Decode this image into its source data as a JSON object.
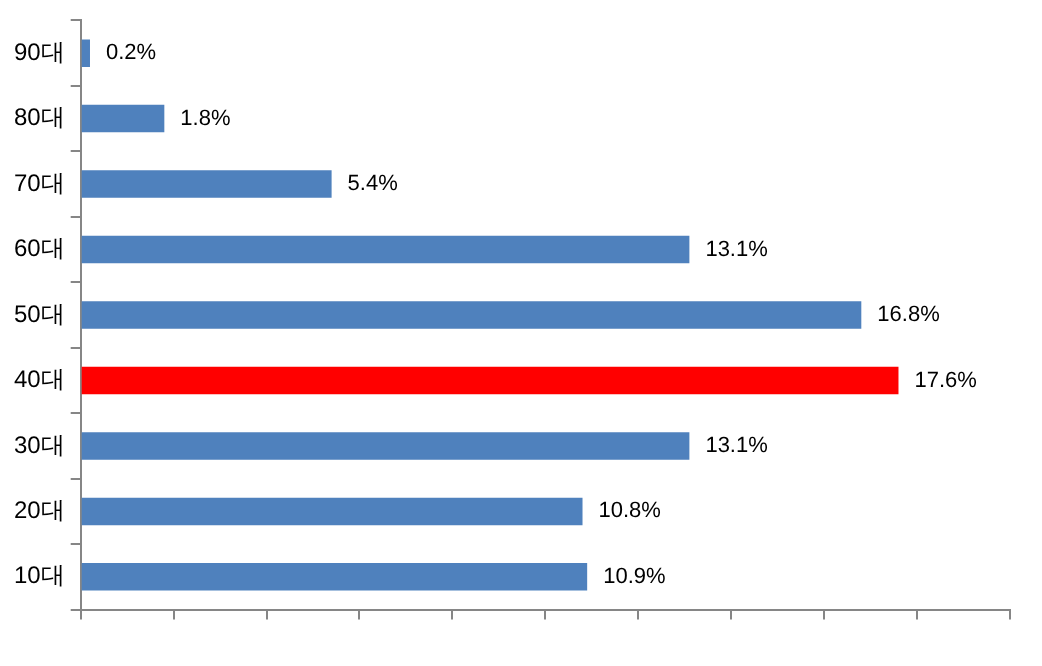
{
  "chart_data": {
    "type": "bar",
    "orientation": "horizontal",
    "categories": [
      "90대",
      "80대",
      "70대",
      "60대",
      "50대",
      "40대",
      "30대",
      "20대",
      "10대"
    ],
    "values": [
      0.2,
      1.8,
      5.4,
      13.1,
      16.8,
      17.6,
      13.1,
      10.8,
      10.9
    ],
    "value_labels": [
      "0.2%",
      "1.8%",
      "5.4%",
      "13.1%",
      "16.8%",
      "17.6%",
      "13.1%",
      "10.8%",
      "10.9%"
    ],
    "colors": [
      "#4f81bd",
      "#4f81bd",
      "#4f81bd",
      "#4f81bd",
      "#4f81bd",
      "#ff0000",
      "#4f81bd",
      "#4f81bd",
      "#4f81bd"
    ],
    "xlim": [
      0,
      20
    ],
    "xticks": [
      {
        "value": 0,
        "label": null
      },
      {
        "value": 2,
        "label": null
      },
      {
        "value": 4,
        "label": null
      },
      {
        "value": 6,
        "label": null
      },
      {
        "value": 8,
        "label": null
      },
      {
        "value": 10,
        "label": null
      },
      {
        "value": 12,
        "label": null
      },
      {
        "value": 14,
        "label": null
      },
      {
        "value": 16,
        "label": null
      },
      {
        "value": 18,
        "label": null
      },
      {
        "value": 20,
        "label": null
      }
    ],
    "tick_labels": "y",
    "grid": false,
    "legend": false
  }
}
